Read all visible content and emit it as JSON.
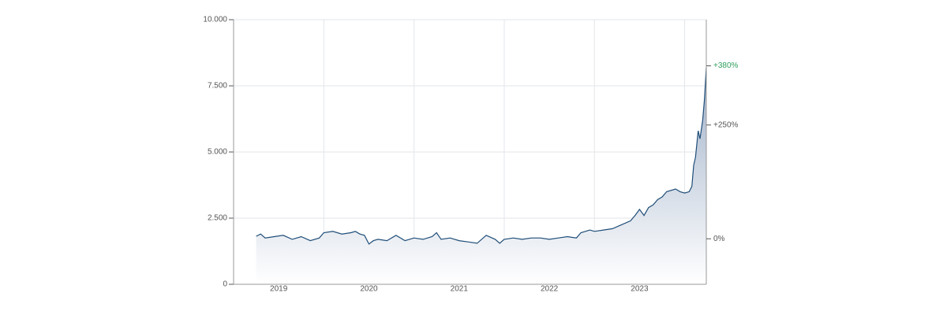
{
  "chart_data": {
    "type": "area",
    "color": "#1f4e79",
    "fill_top": "#9fb0c8",
    "fill_bottom": "#ffffff",
    "grid": true,
    "xlim": [
      2019.0,
      2024.24
    ],
    "xticks": [
      {
        "value": 2019.5,
        "label": "2019"
      },
      {
        "value": 2020.5,
        "label": "2020"
      },
      {
        "value": 2021.5,
        "label": "2021"
      },
      {
        "value": 2022.5,
        "label": "2022"
      },
      {
        "value": 2023.5,
        "label": "2023"
      }
    ],
    "xgrid": [
      2020,
      2021,
      2022,
      2023,
      2024
    ],
    "ylim": [
      0,
      10000
    ],
    "yticks": [
      {
        "value": 0,
        "label": "0"
      },
      {
        "value": 2500,
        "label": "2.500"
      },
      {
        "value": 5000,
        "label": "5.000"
      },
      {
        "value": 7500,
        "label": "7.500"
      },
      {
        "value": 10000,
        "label": "10.000"
      }
    ],
    "y2lim": [
      -100,
      481.4
    ],
    "y2ticks": [
      {
        "value": 0,
        "label": "0%"
      },
      {
        "value": 250,
        "label": "+250%"
      },
      {
        "value": 380,
        "label": "+380%"
      }
    ],
    "y2tick_colors": [
      "#555555",
      "#555555",
      "#2e9e5e"
    ],
    "x": [
      2019.25,
      2019.3,
      2019.35,
      2019.45,
      2019.55,
      2019.65,
      2019.75,
      2019.85,
      2019.95,
      2020.0,
      2020.1,
      2020.2,
      2020.3,
      2020.35,
      2020.4,
      2020.45,
      2020.5,
      2020.55,
      2020.6,
      2020.7,
      2020.8,
      2020.9,
      2021.0,
      2021.1,
      2021.2,
      2021.25,
      2021.3,
      2021.4,
      2021.5,
      2021.6,
      2021.7,
      2021.8,
      2021.9,
      2021.95,
      2022.0,
      2022.1,
      2022.2,
      2022.3,
      2022.4,
      2022.5,
      2022.6,
      2022.7,
      2022.8,
      2022.85,
      2022.95,
      2023.0,
      2023.1,
      2023.2,
      2023.3,
      2023.4,
      2023.45,
      2023.5,
      2023.55,
      2023.6,
      2023.65,
      2023.7,
      2023.75,
      2023.8,
      2023.9,
      2023.95,
      2024.0,
      2024.05,
      2024.08,
      2024.1,
      2024.12,
      2024.15,
      2024.17,
      2024.2,
      2024.22,
      2024.24
    ],
    "values": [
      1815,
      1900,
      1750,
      1800,
      1850,
      1700,
      1800,
      1650,
      1750,
      1950,
      2000,
      1900,
      1950,
      2000,
      1900,
      1850,
      1520,
      1650,
      1700,
      1650,
      1850,
      1650,
      1750,
      1700,
      1800,
      1950,
      1700,
      1750,
      1650,
      1600,
      1550,
      1850,
      1700,
      1550,
      1700,
      1750,
      1700,
      1750,
      1750,
      1700,
      1750,
      1800,
      1750,
      1950,
      2050,
      2000,
      2050,
      2100,
      2250,
      2400,
      2600,
      2830,
      2600,
      2900,
      3000,
      3200,
      3300,
      3500,
      3600,
      3500,
      3450,
      3500,
      3700,
      4500,
      4800,
      5800,
      5500,
      6200,
      7000,
      8200
    ]
  }
}
